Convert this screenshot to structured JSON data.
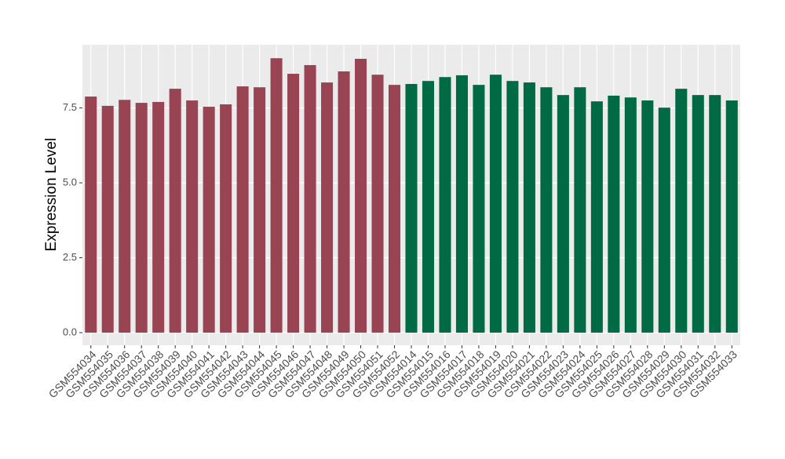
{
  "chart_data": {
    "type": "bar",
    "y_label": "Expression Level",
    "categories": [
      "GSM554034",
      "GSM554035",
      "GSM554036",
      "GSM554037",
      "GSM554038",
      "GSM554039",
      "GSM554040",
      "GSM554041",
      "GSM554042",
      "GSM554043",
      "GSM554044",
      "GSM554045",
      "GSM554046",
      "GSM554047",
      "GSM554048",
      "GSM554049",
      "GSM554050",
      "GSM554051",
      "GSM554052",
      "GSM554014",
      "GSM554015",
      "GSM554016",
      "GSM554017",
      "GSM554018",
      "GSM554019",
      "GSM554020",
      "GSM554021",
      "GSM554022",
      "GSM554023",
      "GSM554024",
      "GSM554025",
      "GSM554026",
      "GSM554027",
      "GSM554028",
      "GSM554029",
      "GSM554030",
      "GSM554031",
      "GSM554032",
      "GSM554033"
    ],
    "values": [
      7.88,
      7.57,
      7.77,
      7.67,
      7.7,
      8.14,
      7.75,
      7.54,
      7.62,
      8.22,
      8.19,
      9.16,
      8.64,
      8.93,
      8.35,
      8.72,
      9.14,
      8.61,
      8.27,
      8.3,
      8.4,
      8.53,
      8.59,
      8.27,
      8.61,
      8.4,
      8.35,
      8.19,
      7.93,
      8.19,
      7.72,
      7.91,
      7.85,
      7.75,
      7.51,
      8.14,
      7.93,
      7.93,
      7.75
    ],
    "colors": [
      "#984452",
      "#984452",
      "#984452",
      "#984452",
      "#984452",
      "#984452",
      "#984452",
      "#984452",
      "#984452",
      "#984452",
      "#984452",
      "#984452",
      "#984452",
      "#984452",
      "#984452",
      "#984452",
      "#984452",
      "#984452",
      "#984452",
      "#006a44",
      "#006a44",
      "#006a44",
      "#006a44",
      "#006a44",
      "#006a44",
      "#006a44",
      "#006a44",
      "#006a44",
      "#006a44",
      "#006a44",
      "#006a44",
      "#006a44",
      "#006a44",
      "#006a44",
      "#006a44",
      "#006a44",
      "#006a44",
      "#006a44",
      "#006a44"
    ],
    "ylim": [
      -0.42,
      9.61
    ],
    "yticks": [
      {
        "value": 0,
        "label": "0.0"
      },
      2.5,
      {
        "value": 5,
        "label": "5.0"
      },
      7.5
    ],
    "grid": true
  }
}
